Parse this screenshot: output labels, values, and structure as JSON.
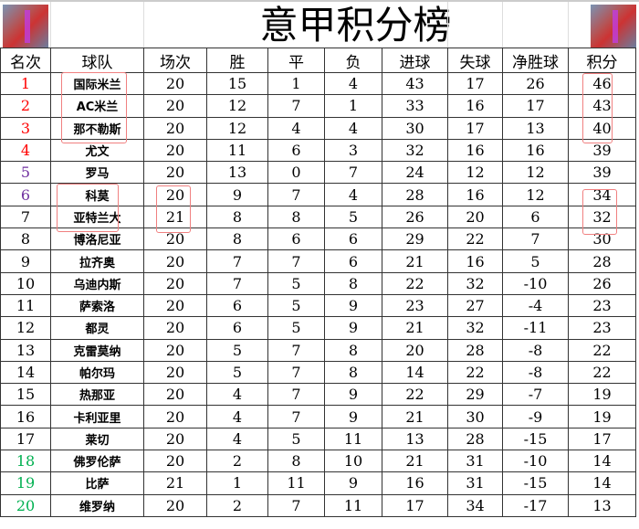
{
  "title": "意甲积分榜",
  "logo_icon": "basketball-player-avatar",
  "headers": [
    "名次",
    "球队",
    "场次",
    "胜",
    "平",
    "负",
    "进球",
    "失球",
    "净胜球",
    "积分"
  ],
  "rank_colors": {
    "top": "#ff0000",
    "europa": "#7030a0",
    "normal": "#000000",
    "relegation": "#00b050"
  },
  "rows": [
    {
      "rank": "1",
      "team": "国际米兰",
      "played": "20",
      "won": "15",
      "drawn": "1",
      "lost": "4",
      "gf": "43",
      "ga": "17",
      "gd": "26",
      "pts": "46",
      "zone": "top"
    },
    {
      "rank": "2",
      "team": "AC米兰",
      "played": "20",
      "won": "12",
      "drawn": "7",
      "lost": "1",
      "gf": "33",
      "ga": "16",
      "gd": "17",
      "pts": "43",
      "zone": "top"
    },
    {
      "rank": "3",
      "team": "那不勒斯",
      "played": "20",
      "won": "12",
      "drawn": "4",
      "lost": "4",
      "gf": "30",
      "ga": "17",
      "gd": "13",
      "pts": "40",
      "zone": "top"
    },
    {
      "rank": "4",
      "team": "尤文",
      "played": "20",
      "won": "11",
      "drawn": "6",
      "lost": "3",
      "gf": "32",
      "ga": "16",
      "gd": "16",
      "pts": "39",
      "zone": "top"
    },
    {
      "rank": "5",
      "team": "罗马",
      "played": "20",
      "won": "13",
      "drawn": "0",
      "lost": "7",
      "gf": "24",
      "ga": "12",
      "gd": "12",
      "pts": "39",
      "zone": "europa"
    },
    {
      "rank": "6",
      "team": "科莫",
      "played": "20",
      "won": "9",
      "drawn": "7",
      "lost": "4",
      "gf": "28",
      "ga": "16",
      "gd": "12",
      "pts": "34",
      "zone": "europa"
    },
    {
      "rank": "7",
      "team": "亚特兰大",
      "played": "21",
      "won": "8",
      "drawn": "8",
      "lost": "5",
      "gf": "26",
      "ga": "20",
      "gd": "6",
      "pts": "32",
      "zone": "normal"
    },
    {
      "rank": "8",
      "team": "博洛尼亚",
      "played": "20",
      "won": "8",
      "drawn": "6",
      "lost": "6",
      "gf": "29",
      "ga": "22",
      "gd": "7",
      "pts": "30",
      "zone": "normal"
    },
    {
      "rank": "9",
      "team": "拉齐奥",
      "played": "20",
      "won": "7",
      "drawn": "7",
      "lost": "6",
      "gf": "21",
      "ga": "16",
      "gd": "5",
      "pts": "28",
      "zone": "normal"
    },
    {
      "rank": "10",
      "team": "乌迪内斯",
      "played": "20",
      "won": "7",
      "drawn": "5",
      "lost": "8",
      "gf": "22",
      "ga": "32",
      "gd": "-10",
      "pts": "26",
      "zone": "normal"
    },
    {
      "rank": "11",
      "team": "萨索洛",
      "played": "20",
      "won": "6",
      "drawn": "5",
      "lost": "9",
      "gf": "23",
      "ga": "27",
      "gd": "-4",
      "pts": "23",
      "zone": "normal"
    },
    {
      "rank": "12",
      "team": "都灵",
      "played": "20",
      "won": "6",
      "drawn": "5",
      "lost": "9",
      "gf": "21",
      "ga": "32",
      "gd": "-11",
      "pts": "23",
      "zone": "normal"
    },
    {
      "rank": "13",
      "team": "克雷莫纳",
      "played": "20",
      "won": "5",
      "drawn": "7",
      "lost": "8",
      "gf": "20",
      "ga": "28",
      "gd": "-8",
      "pts": "22",
      "zone": "normal"
    },
    {
      "rank": "14",
      "team": "帕尔玛",
      "played": "20",
      "won": "5",
      "drawn": "7",
      "lost": "8",
      "gf": "14",
      "ga": "22",
      "gd": "-8",
      "pts": "22",
      "zone": "normal"
    },
    {
      "rank": "15",
      "team": "热那亚",
      "played": "20",
      "won": "4",
      "drawn": "7",
      "lost": "9",
      "gf": "22",
      "ga": "29",
      "gd": "-7",
      "pts": "19",
      "zone": "normal"
    },
    {
      "rank": "16",
      "team": "卡利亚里",
      "played": "20",
      "won": "4",
      "drawn": "7",
      "lost": "9",
      "gf": "21",
      "ga": "30",
      "gd": "-9",
      "pts": "19",
      "zone": "normal"
    },
    {
      "rank": "17",
      "team": "莱切",
      "played": "20",
      "won": "4",
      "drawn": "5",
      "lost": "11",
      "gf": "13",
      "ga": "28",
      "gd": "-15",
      "pts": "17",
      "zone": "normal"
    },
    {
      "rank": "18",
      "team": "佛罗伦萨",
      "played": "20",
      "won": "2",
      "drawn": "8",
      "lost": "10",
      "gf": "21",
      "ga": "31",
      "gd": "-10",
      "pts": "14",
      "zone": "relegation"
    },
    {
      "rank": "19",
      "team": "比萨",
      "played": "21",
      "won": "1",
      "drawn": "11",
      "lost": "9",
      "gf": "16",
      "ga": "31",
      "gd": "-15",
      "pts": "14",
      "zone": "relegation"
    },
    {
      "rank": "20",
      "team": "维罗纳",
      "played": "20",
      "won": "2",
      "drawn": "7",
      "lost": "11",
      "gf": "17",
      "ga": "34",
      "gd": "-17",
      "pts": "13",
      "zone": "relegation"
    }
  ]
}
